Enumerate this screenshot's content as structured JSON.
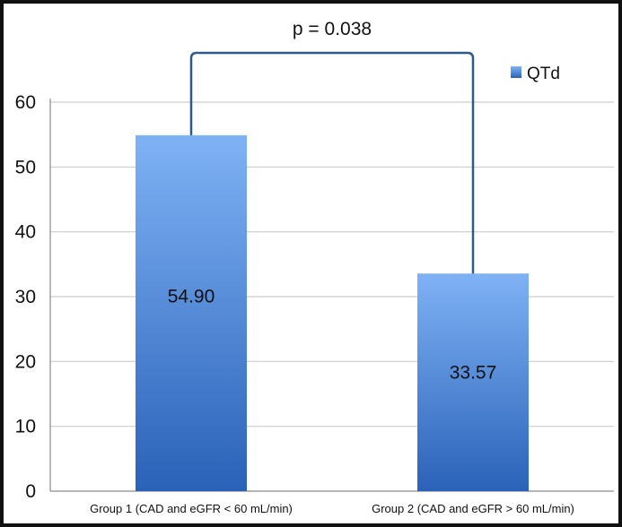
{
  "chart_data": {
    "type": "bar",
    "categories": [
      "Group 1 (CAD and eGFR < 60 mL/min)",
      "Group 2 (CAD and eGFR > 60 mL/min)"
    ],
    "series": [
      {
        "name": "QTd",
        "values": [
          54.9,
          33.57
        ]
      }
    ],
    "data_labels": [
      "54.90",
      "33.57"
    ],
    "ylim": [
      0,
      60
    ],
    "yticks": [
      "0",
      "10",
      "20",
      "30",
      "40",
      "50",
      "60"
    ],
    "grid": true,
    "legend_position": "top-right",
    "annotation": "p = 0.038",
    "colors": {
      "bar_top": "#7fb2f5",
      "bar_bottom": "#2a62b8",
      "bracket": "#2e5a8a",
      "grid": "#cccccc"
    }
  }
}
